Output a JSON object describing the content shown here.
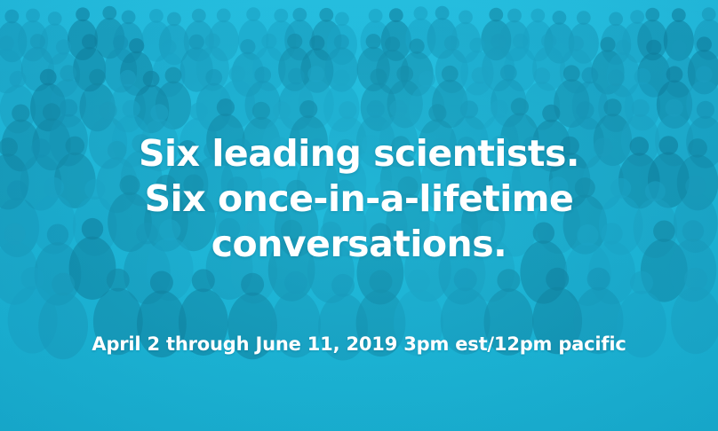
{
  "banner": {
    "headline_lines": [
      "Six leading scientists.",
      "Six once-in-a-lifetime",
      "conversations."
    ],
    "dates": "April 2 through June 11, 2019 3pm est/12pm pacific"
  },
  "colors": {
    "tint": "#1fb6d6",
    "text": "#ffffff"
  }
}
